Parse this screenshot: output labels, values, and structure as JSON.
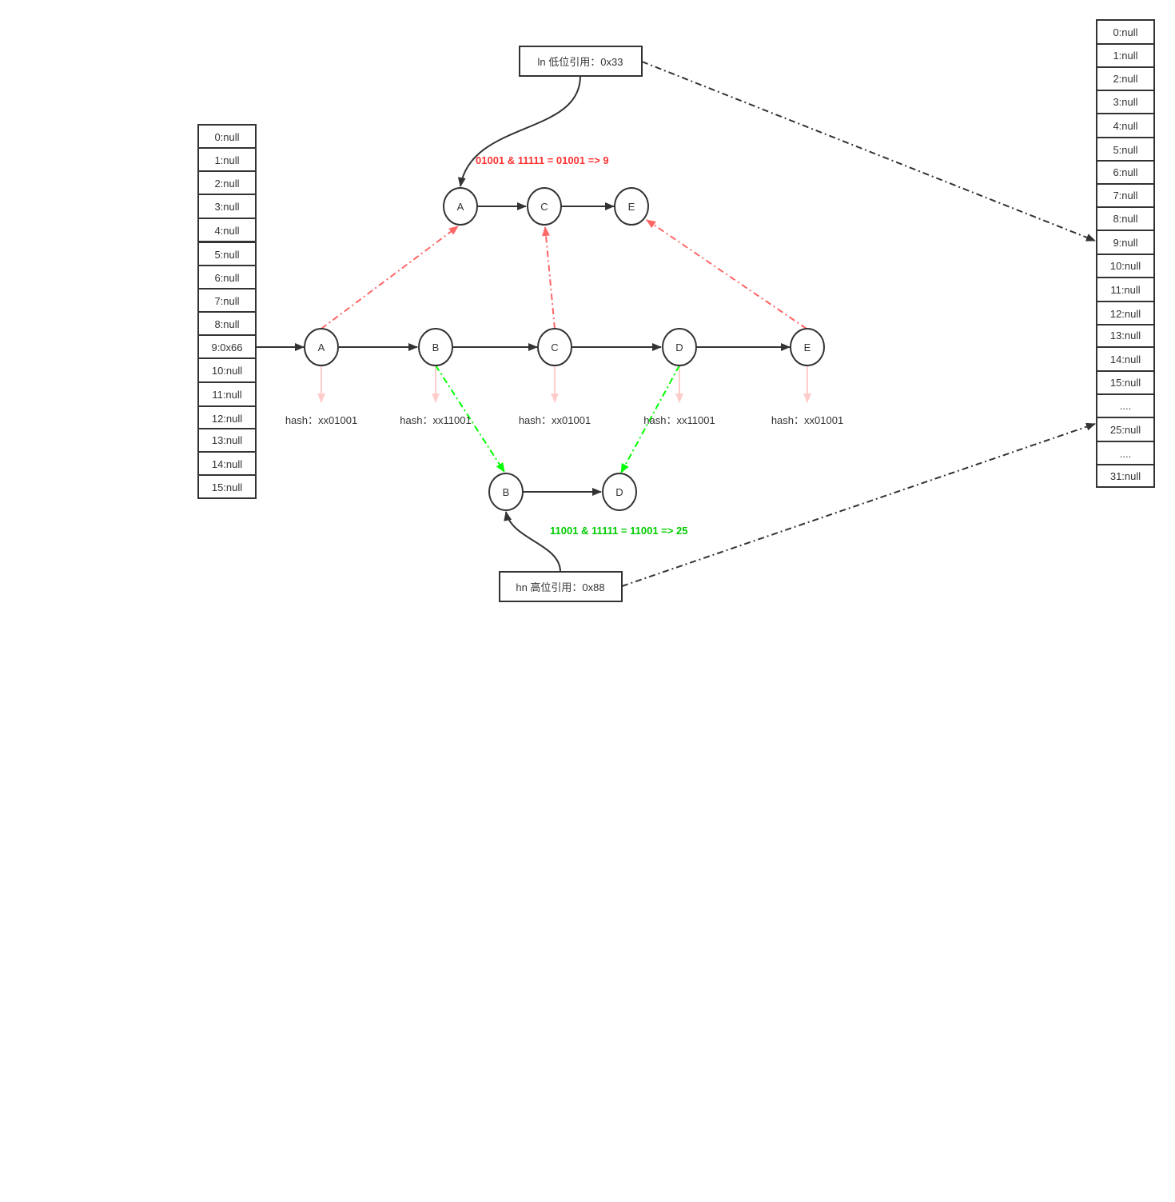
{
  "old_table": {
    "cells": [
      "0:null",
      "1:null",
      "2:null",
      "3:null",
      "4:null",
      "5:null",
      "6:null",
      "7:null",
      "8:null",
      "9:0x66",
      "10:null",
      "11:null",
      "12:null",
      "13:null",
      "14:null",
      "15:null"
    ]
  },
  "new_table": {
    "cells": [
      "0:null",
      "1:null",
      "2:null",
      "3:null",
      "4:null",
      "5:null",
      "6:null",
      "7:null",
      "8:null",
      "9:null",
      "10:null",
      "11:null",
      "12:null",
      "13:null",
      "14:null",
      "15:null",
      "....",
      "25:null",
      "....",
      "31:null"
    ]
  },
  "original_chain": {
    "nodes": [
      "A",
      "B",
      "C",
      "D",
      "E"
    ],
    "hashes": [
      "hash：xx01001",
      "hash：xx11001",
      "hash：xx01001",
      "hash：xx11001",
      "hash：xx01001"
    ]
  },
  "low_chain": {
    "nodes": [
      "A",
      "C",
      "E"
    ]
  },
  "high_chain": {
    "nodes": [
      "B",
      "D"
    ]
  },
  "low_ref": {
    "label": "ln 低位引用：0x33"
  },
  "high_ref": {
    "label": "hn 高位引用：0x88"
  },
  "formulas": {
    "low": "01001 & 11111 = 01001 => 9",
    "high": "11001 & 11111 = 11001 => 25"
  },
  "colors": {
    "line": "#333333",
    "low_link": "#ff6666",
    "high_link": "#00ff00",
    "low_text": "#ff3333",
    "high_text": "#00cc00",
    "hash_arrow": "#ffcccc"
  }
}
